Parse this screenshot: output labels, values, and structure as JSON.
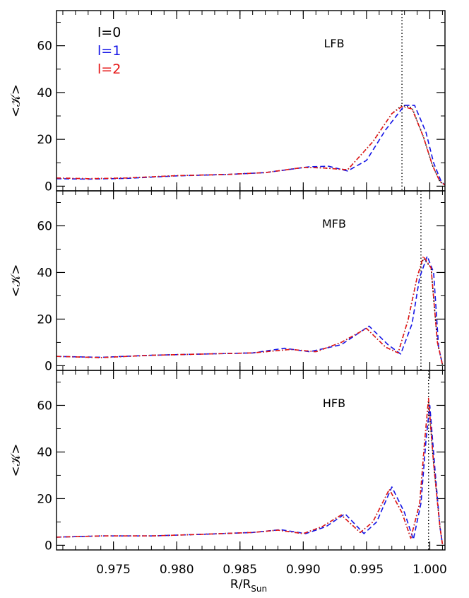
{
  "figure": {
    "xlabel_main": "R/R",
    "xlabel_sub": "Sun",
    "ylabel": "<𝒦>",
    "legend": [
      {
        "label": "l=0",
        "color": "#000000"
      },
      {
        "label": "l=1",
        "color": "#1414e6"
      },
      {
        "label": "l=2",
        "color": "#e61414"
      }
    ]
  },
  "chart_data": [
    {
      "type": "line",
      "title": "LFB",
      "xlim": [
        0.9705,
        1.0012
      ],
      "ylim": [
        -2,
        75
      ],
      "x_ticks": [
        0.975,
        0.98,
        0.985,
        0.99,
        0.995,
        1.0
      ],
      "x_tick_labels": [
        "0.975",
        "0.980",
        "0.985",
        "0.990",
        "0.995",
        "1.000"
      ],
      "y_ticks": [
        0,
        20,
        40,
        60
      ],
      "y_tick_labels": [
        "0",
        "20",
        "40",
        "60"
      ],
      "vline": 0.9978,
      "series": [
        {
          "name": "l=0",
          "color": "#000000",
          "dash": "1.5 3",
          "x": [
            0.9705,
            0.973,
            0.976,
            0.98,
            0.984,
            0.987,
            0.99,
            0.9915,
            0.9935,
            0.9955,
            0.997,
            0.9978,
            0.9986,
            0.9995,
            1.0002,
            1.0008,
            1.0012
          ],
          "y": [
            3.5,
            3.2,
            3.5,
            4.5,
            5.0,
            5.8,
            8.0,
            7.8,
            7.0,
            19.0,
            31.0,
            34.5,
            33.5,
            21.0,
            9.0,
            2.0,
            0.5
          ]
        },
        {
          "name": "l=1",
          "color": "#1414e6",
          "dash": "7 4",
          "x": [
            0.9705,
            0.973,
            0.976,
            0.98,
            0.984,
            0.987,
            0.9905,
            0.992,
            0.9935,
            0.995,
            0.9965,
            0.998,
            0.9988,
            0.9997,
            1.0003,
            1.0009,
            1.0012
          ],
          "y": [
            3.2,
            3.0,
            3.3,
            4.4,
            5.0,
            5.8,
            8.3,
            8.5,
            6.5,
            11.0,
            24.0,
            34.5,
            34.5,
            23.0,
            10.0,
            2.0,
            0.5
          ]
        },
        {
          "name": "l=2",
          "color": "#e61414",
          "dash": "6 3 1.5 3",
          "x": [
            0.9705,
            0.973,
            0.976,
            0.98,
            0.984,
            0.987,
            0.99,
            0.9915,
            0.9935,
            0.9955,
            0.997,
            0.9978,
            0.9986,
            0.9995,
            1.0002,
            1.0008,
            1.0012
          ],
          "y": [
            3.5,
            3.2,
            3.5,
            4.5,
            5.0,
            5.8,
            8.0,
            7.8,
            7.0,
            19.0,
            31.0,
            34.0,
            33.0,
            21.0,
            9.0,
            2.0,
            0.5
          ]
        }
      ]
    },
    {
      "type": "line",
      "title": "MFB",
      "xlim": [
        0.9705,
        1.0012
      ],
      "ylim": [
        -2,
        75
      ],
      "x_ticks": [
        0.975,
        0.98,
        0.985,
        0.99,
        0.995,
        1.0
      ],
      "x_tick_labels": [
        "0.975",
        "0.980",
        "0.985",
        "0.990",
        "0.995",
        "1.000"
      ],
      "y_ticks": [
        0,
        20,
        40,
        60
      ],
      "y_tick_labels": [
        "0",
        "20",
        "40",
        "60"
      ],
      "vline": 0.9993,
      "series": [
        {
          "name": "l=0",
          "color": "#000000",
          "dash": "1.5 3",
          "x": [
            0.9705,
            0.974,
            0.978,
            0.982,
            0.986,
            0.989,
            0.991,
            0.993,
            0.995,
            0.9965,
            0.9975,
            0.9983,
            0.999,
            0.9995,
            1.0001,
            1.0006,
            1.001
          ],
          "y": [
            4.0,
            3.5,
            4.5,
            5.0,
            5.5,
            7.0,
            6.0,
            10.0,
            16.0,
            8.0,
            5.5,
            20.0,
            38.0,
            46.0,
            42.0,
            10.0,
            0.5
          ]
        },
        {
          "name": "l=1",
          "color": "#1414e6",
          "dash": "7 4",
          "x": [
            0.9705,
            0.974,
            0.978,
            0.982,
            0.986,
            0.9885,
            0.9905,
            0.993,
            0.9952,
            0.9967,
            0.9977,
            0.9986,
            0.9992,
            0.9998,
            1.0003,
            1.0007,
            1.001
          ],
          "y": [
            4.0,
            3.6,
            4.5,
            5.0,
            5.5,
            7.5,
            6.0,
            9.0,
            17.0,
            9.0,
            5.0,
            18.0,
            38.0,
            47.0,
            40.0,
            8.0,
            0.5
          ]
        },
        {
          "name": "l=2",
          "color": "#e61414",
          "dash": "6 3 1.5 3",
          "x": [
            0.9705,
            0.974,
            0.978,
            0.982,
            0.986,
            0.989,
            0.991,
            0.993,
            0.995,
            0.9965,
            0.9975,
            0.9983,
            0.999,
            0.9995,
            1.0001,
            1.0006,
            1.001
          ],
          "y": [
            4.0,
            3.5,
            4.5,
            5.0,
            5.5,
            7.0,
            6.0,
            10.0,
            16.0,
            8.0,
            5.5,
            20.0,
            38.0,
            47.0,
            42.0,
            10.0,
            0.5
          ]
        }
      ]
    },
    {
      "type": "line",
      "title": "HFB",
      "xlim": [
        0.9705,
        1.0012
      ],
      "ylim": [
        -2,
        75
      ],
      "x_ticks": [
        0.975,
        0.98,
        0.985,
        0.99,
        0.995,
        1.0
      ],
      "x_tick_labels": [
        "0.975",
        "0.980",
        "0.985",
        "0.990",
        "0.995",
        "1.000"
      ],
      "y_ticks": [
        0,
        20,
        40,
        60
      ],
      "y_tick_labels": [
        "0",
        "20",
        "40",
        "60"
      ],
      "vline": 0.9999,
      "series": [
        {
          "name": "l=0",
          "color": "#000000",
          "dash": "1.5 3",
          "x": [
            0.9705,
            0.974,
            0.978,
            0.982,
            0.986,
            0.988,
            0.99,
            0.9915,
            0.993,
            0.9945,
            0.9955,
            0.9968,
            0.9978,
            0.9985,
            0.9992,
            0.9996,
            0.9999,
            1.0003,
            1.0008,
            1.001
          ],
          "y": [
            3.5,
            4.0,
            4.0,
            4.7,
            5.5,
            6.5,
            5.0,
            8.0,
            13.0,
            5.5,
            10.0,
            24.0,
            14.0,
            3.0,
            18.0,
            45.0,
            62.0,
            35.0,
            8.0,
            0.5
          ]
        },
        {
          "name": "l=1",
          "color": "#1414e6",
          "dash": "7 4",
          "x": [
            0.9705,
            0.974,
            0.978,
            0.982,
            0.986,
            0.9882,
            0.9902,
            0.9918,
            0.9933,
            0.9948,
            0.9958,
            0.997,
            0.998,
            0.9987,
            0.9993,
            0.9997,
            1.0,
            1.0004,
            1.0008,
            1.001
          ],
          "y": [
            3.5,
            4.0,
            4.0,
            4.7,
            5.5,
            6.7,
            5.0,
            8.0,
            13.5,
            5.0,
            10.0,
            25.0,
            14.0,
            2.5,
            18.0,
            45.0,
            60.0,
            33.0,
            8.0,
            0.5
          ]
        },
        {
          "name": "l=2",
          "color": "#e61414",
          "dash": "6 3 1.5 3",
          "x": [
            0.9705,
            0.974,
            0.978,
            0.982,
            0.986,
            0.988,
            0.99,
            0.9915,
            0.993,
            0.9945,
            0.9955,
            0.9968,
            0.9978,
            0.9985,
            0.9992,
            0.9996,
            0.9999,
            1.0003,
            1.0008,
            1.001
          ],
          "y": [
            3.5,
            4.0,
            4.0,
            4.7,
            5.5,
            6.5,
            5.0,
            8.0,
            13.0,
            5.5,
            10.0,
            24.0,
            14.0,
            3.0,
            18.0,
            45.0,
            63.0,
            35.0,
            8.0,
            0.5
          ]
        }
      ]
    }
  ]
}
